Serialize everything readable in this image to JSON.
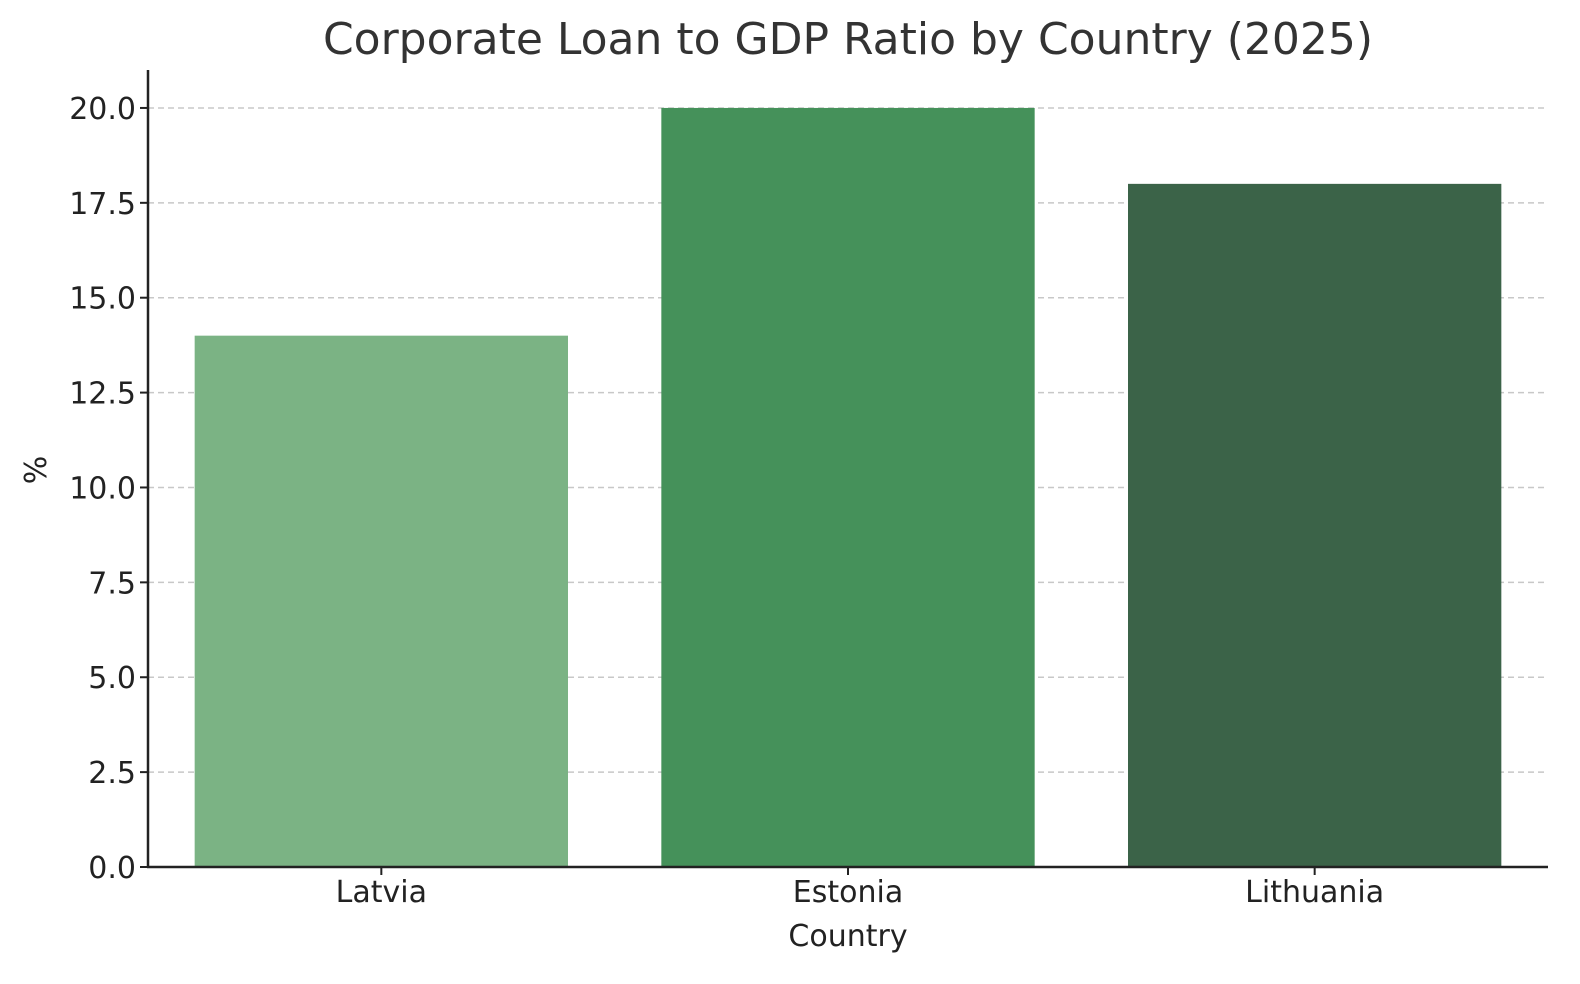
{
  "chart_data": {
    "type": "bar",
    "title": "Corporate Loan to GDP Ratio by Country (2025)",
    "xlabel": "Country",
    "ylabel": "%",
    "categories": [
      "Latvia",
      "Estonia",
      "Lithuania"
    ],
    "values": [
      14.0,
      20.0,
      18.0
    ],
    "colors": [
      "#7bb384",
      "#45915a",
      "#3b6348"
    ],
    "ylim": [
      0,
      21
    ],
    "yticks": [
      "0.0",
      "2.5",
      "5.0",
      "7.5",
      "10.0",
      "12.5",
      "15.0",
      "17.5",
      "20.0"
    ],
    "grid": true,
    "grid_axis": "y",
    "legend": false
  }
}
